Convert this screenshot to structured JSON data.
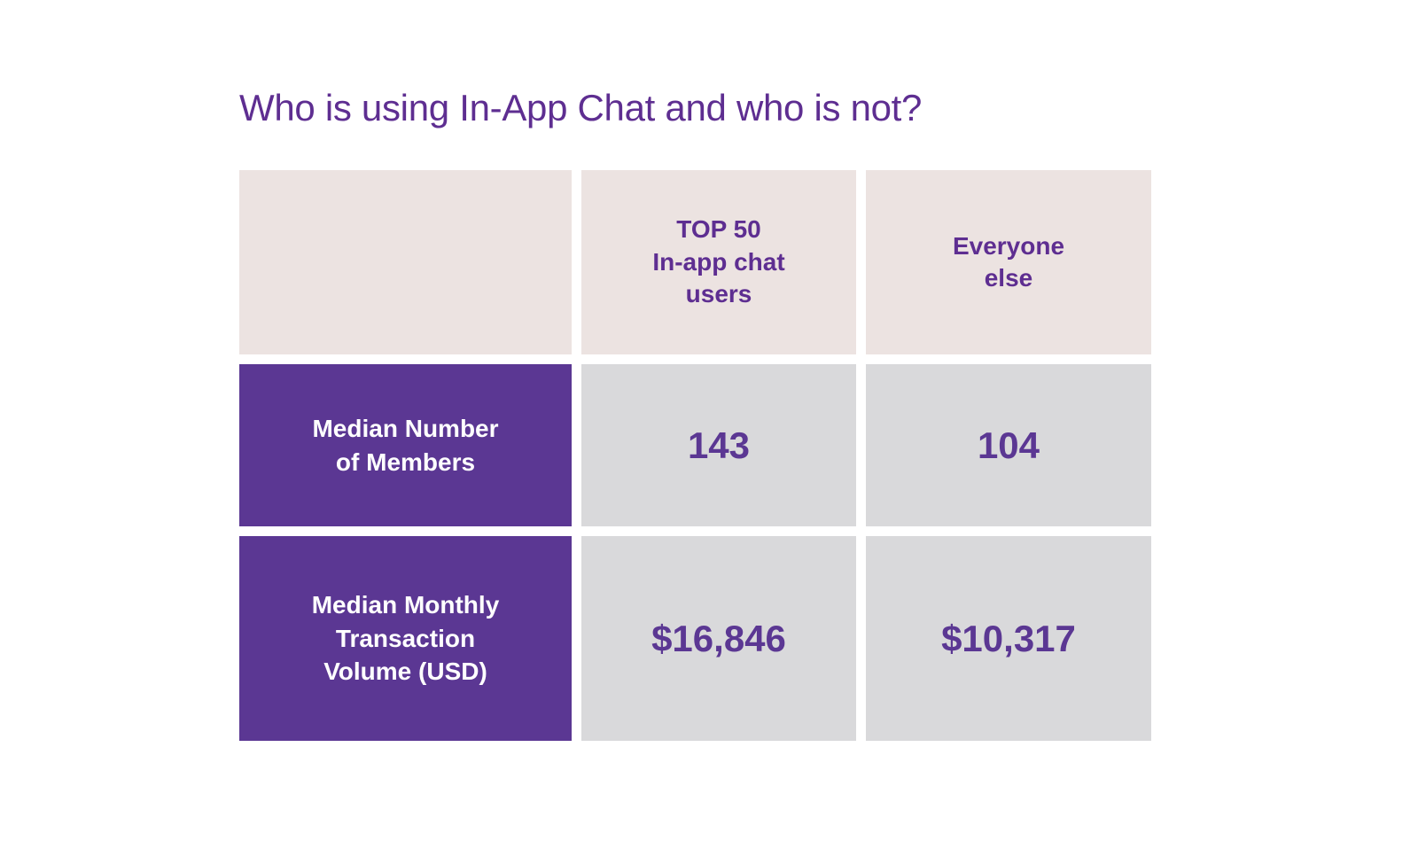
{
  "title": "Who is using In-App Chat and who is not?",
  "chart_data": {
    "type": "table",
    "title": "Who is using In-App Chat and who is not?",
    "columns": [
      "TOP 50 In-app chat users",
      "Everyone else"
    ],
    "rows": [
      {
        "label": "Median Number of Members",
        "values": [
          143,
          104
        ]
      },
      {
        "label": "Median Monthly Transaction Volume (USD)",
        "values": [
          "$16,846",
          "$10,317"
        ]
      }
    ]
  },
  "display": {
    "title": "Who is using In-App Chat and who is not?",
    "header_top50": "TOP 50\nIn-app chat\nusers",
    "header_everyone": "Everyone\nelse",
    "row1_label": "Median Number\nof Members",
    "row1_value_top50": "143",
    "row1_value_everyone": "104",
    "row2_label": "Median Monthly\nTransaction\nVolume (USD)",
    "row2_value_top50": "$16,846",
    "row2_value_everyone": "$10,317"
  },
  "colors": {
    "page_bg": "#ffffff",
    "title_text": "#5e2e91",
    "header_bg": "#ece3e1",
    "header_text": "#5e2e91",
    "row_label_bg": "#5b3793",
    "row_label_text": "#ffffff",
    "value_bg": "#d9d9db",
    "value_text": "#5b3793"
  }
}
